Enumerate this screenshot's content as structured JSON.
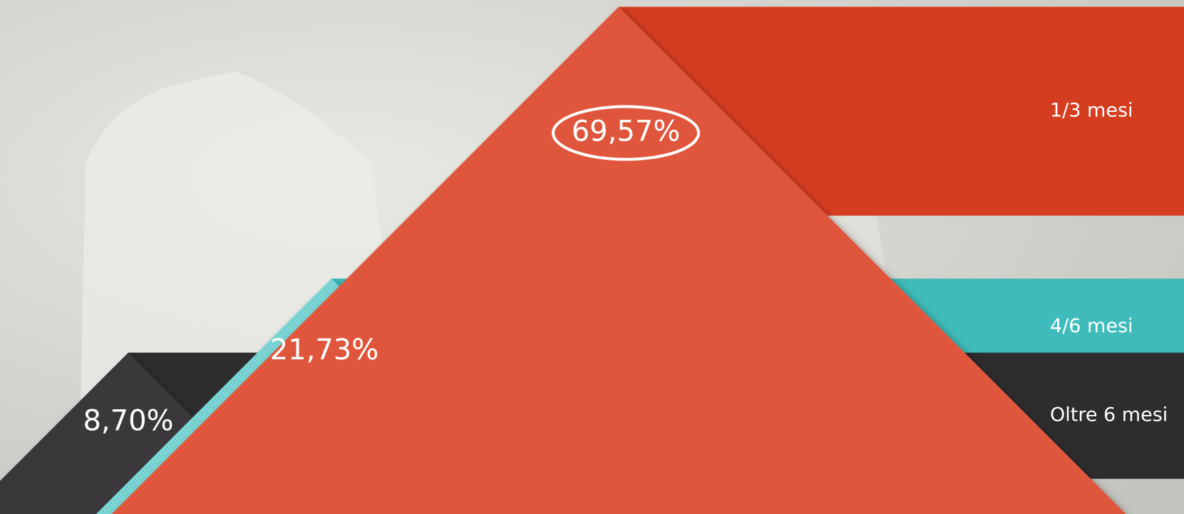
{
  "chart_data": {
    "type": "pyramid",
    "categories": [
      "1/3 mesi",
      "4/6 mesi",
      "Oltre 6 mesi"
    ],
    "values": [
      69.57,
      21.73,
      8.7
    ],
    "value_labels": [
      "69,57%",
      "21,73%",
      "8,70%"
    ],
    "colors": [
      "#e0573d",
      "#79d3d2",
      "#3a393a"
    ],
    "band_colors": [
      "#d43d20",
      "#3ebbba",
      "#2e2d2e"
    ]
  }
}
